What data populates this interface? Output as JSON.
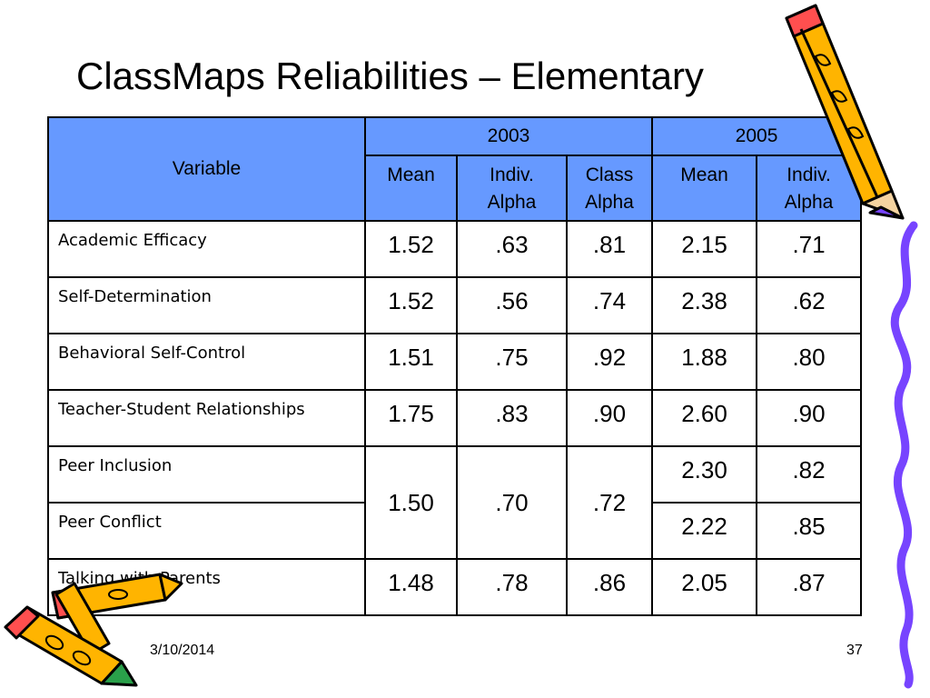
{
  "slide": {
    "title": "ClassMaps Reliabilities – Elementary",
    "date": "3/10/2014",
    "page_number": "37"
  },
  "table": {
    "variable_header": "Variable",
    "year_2003": "2003",
    "year_2005": "2005",
    "subheaders": {
      "mean_2003": "Mean",
      "indiv_alpha_2003_1": "Indiv.",
      "indiv_alpha_2003_2": "Alpha",
      "class_alpha_2003_1": "Class",
      "class_alpha_2003_2": "Alpha",
      "mean_2005": "Mean",
      "indiv_alpha_2005_1": "Indiv.",
      "indiv_alpha_2005_2": "Alpha"
    },
    "rows": [
      {
        "variable": "Academic Efficacy",
        "mean_2003": "1.52",
        "indiv_alpha_2003": ".63",
        "class_alpha_2003": ".81",
        "mean_2005": "2.15",
        "indiv_alpha_2005": ".71"
      },
      {
        "variable": "Self-Determination",
        "mean_2003": "1.52",
        "indiv_alpha_2003": ".56",
        "class_alpha_2003": ".74",
        "mean_2005": "2.38",
        "indiv_alpha_2005": ".62"
      },
      {
        "variable": "Behavioral Self-Control",
        "mean_2003": "1.51",
        "indiv_alpha_2003": ".75",
        "class_alpha_2003": ".92",
        "mean_2005": "1.88",
        "indiv_alpha_2005": ".80"
      },
      {
        "variable": "Teacher-Student Relationships",
        "mean_2003": "1.75",
        "indiv_alpha_2003": ".83",
        "class_alpha_2003": ".90",
        "mean_2005": "2.60",
        "indiv_alpha_2005": ".90"
      },
      {
        "variable": "Peer Inclusion",
        "mean_2005": "2.30",
        "indiv_alpha_2005": ".82"
      },
      {
        "variable": "Peer Conflict",
        "mean_2005": "2.22",
        "indiv_alpha_2005": ".85"
      },
      {
        "variable": "Talking with Parents",
        "mean_2003": "1.48",
        "indiv_alpha_2003": ".78",
        "class_alpha_2003": ".86",
        "mean_2005": "2.05",
        "indiv_alpha_2005": ".87"
      }
    ],
    "peer_merged_2003": {
      "mean": "1.50",
      "indiv_alpha": ".70",
      "class_alpha": ".72"
    }
  },
  "decor": {
    "header_color": "#6699ff",
    "icons": [
      "pencil-clipart-icon",
      "crayon-clipart-icon",
      "squiggle-line-icon"
    ]
  }
}
